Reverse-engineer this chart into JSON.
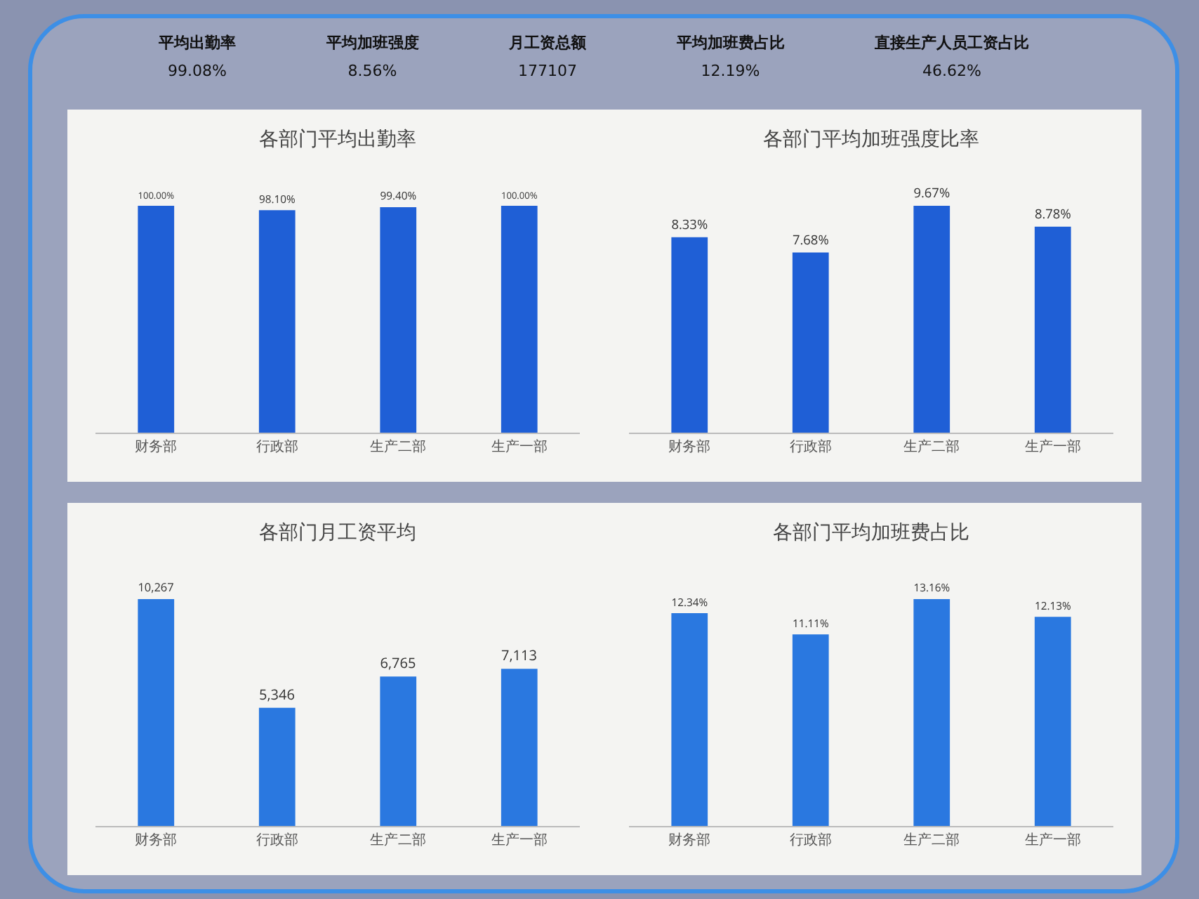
{
  "chart_data": [
    {
      "type": "other",
      "annotations": [
        "平均出勤率",
        "99.08%",
        "平均加班强度",
        "8.56%",
        "月工资总额",
        "177107",
        "平均加班费占比",
        "12.19%",
        "直接生产人员工资占比",
        "46.62%"
      ]
    },
    {
      "type": "bar",
      "title": "各部门平均出勤率",
      "categories": [
        "财务部",
        "行政部",
        "生产二部",
        "生产一部"
      ],
      "values": [
        100,
        98.1,
        99.4,
        100
      ],
      "value_labels": [
        "100.00%",
        "98.10%",
        "99.40%",
        "100.00%"
      ],
      "color": "#1f5fd6",
      "grid": false,
      "legend": false
    },
    {
      "type": "bar",
      "title": "各部门平均加班强度比率",
      "categories": [
        "财务部",
        "行政部",
        "生产二部",
        "生产一部"
      ],
      "values": [
        8.33,
        7.68,
        9.67,
        8.78
      ],
      "value_labels": [
        "8.33%",
        "7.68%",
        "9.67%",
        "8.78%"
      ],
      "color": "#1f5fd6",
      "grid": false,
      "legend": false
    },
    {
      "type": "bar",
      "title": "各部门月工资平均",
      "categories": [
        "财务部",
        "行政部",
        "生产二部",
        "生产一部"
      ],
      "values": [
        10267,
        5346,
        6765,
        7113
      ],
      "value_labels": [
        "10,267",
        "5,346",
        "6,765",
        "7,113"
      ],
      "color": "#2a78e0",
      "grid": false,
      "legend": false
    },
    {
      "type": "bar",
      "title": "各部门平均加班费占比",
      "categories": [
        "财务部",
        "行政部",
        "生产二部",
        "生产一部"
      ],
      "values": [
        12.34,
        11.11,
        13.16,
        12.13
      ],
      "value_labels": [
        "12.34%",
        "11.11%",
        "13.16%",
        "12.13%"
      ],
      "color": "#2a78e0",
      "grid": false,
      "legend": false
    }
  ]
}
